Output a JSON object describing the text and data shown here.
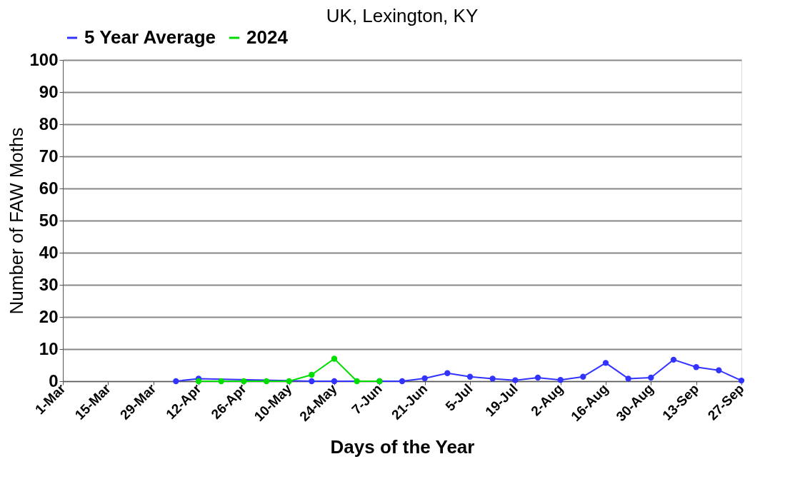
{
  "chart_data": {
    "type": "line",
    "title": "UK, Lexington, KY",
    "xlabel": "Days of the Year",
    "ylabel": "Number of FAW Moths",
    "categories": [
      "1-Mar",
      null,
      "15-Mar",
      null,
      "29-Mar",
      null,
      "12-Apr",
      null,
      "26-Apr",
      null,
      "10-May",
      null,
      "24-May",
      null,
      "7-Jun",
      null,
      "21-Jun",
      null,
      "5-Jul",
      null,
      "19-Jul",
      null,
      "2-Aug",
      null,
      "16-Aug",
      null,
      "30-Aug",
      null,
      "13-Sep",
      null,
      "27-Sep"
    ],
    "series": [
      {
        "name": "5 Year Average",
        "color": "#3333ff",
        "values": [
          null,
          null,
          null,
          null,
          null,
          0,
          0.8,
          null,
          null,
          null,
          null,
          0,
          0,
          null,
          0,
          0,
          0.9,
          2.5,
          1.4,
          0.8,
          0.3,
          1.1,
          0.4,
          1.4,
          5.7,
          0.8,
          1.1,
          6.7,
          4.4,
          3.4,
          0.2
        ]
      },
      {
        "name": "2024",
        "color": "#00dd00",
        "values": [
          null,
          null,
          null,
          null,
          null,
          null,
          0,
          0,
          0,
          0,
          0,
          2,
          7,
          0,
          0,
          null,
          null,
          null,
          null,
          null,
          null,
          null,
          null,
          null,
          null,
          null,
          null,
          null,
          null,
          null,
          null
        ]
      }
    ],
    "ylim": [
      0,
      100
    ],
    "yticks": [
      0,
      10,
      20,
      30,
      40,
      50,
      60,
      70,
      80,
      90,
      100
    ],
    "grid": "y",
    "legend": "top",
    "marker": "circle",
    "line_style": "solid"
  }
}
